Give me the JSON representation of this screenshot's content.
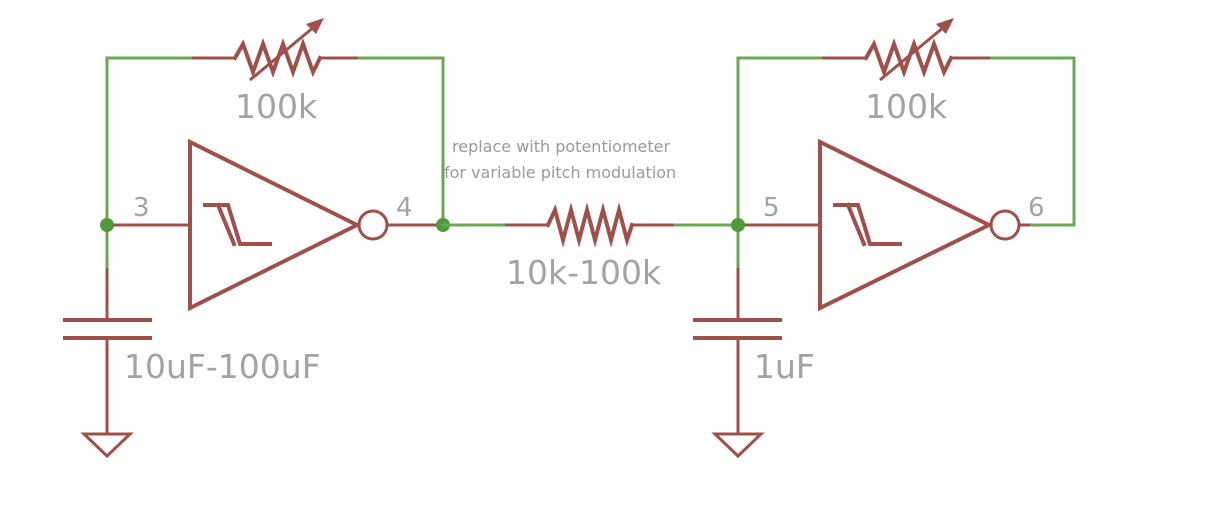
{
  "labels": {
    "feedback_resistor_1": "100k",
    "feedback_resistor_2": "100k",
    "series_resistor": "10k-100k",
    "capacitor_1": "10uF-100uF",
    "capacitor_2": "1uF"
  },
  "pins": {
    "inverter_1_in": "3",
    "inverter_1_out": "4",
    "inverter_2_in": "5",
    "inverter_2_out": "6"
  },
  "note": {
    "line1": "replace with potentiometer",
    "line2": "for variable pitch modulation"
  },
  "colors": {
    "wire": "#6aa84f",
    "component": "#a0504a",
    "junction": "#4f9a3a",
    "label": "#a3a3a3"
  }
}
